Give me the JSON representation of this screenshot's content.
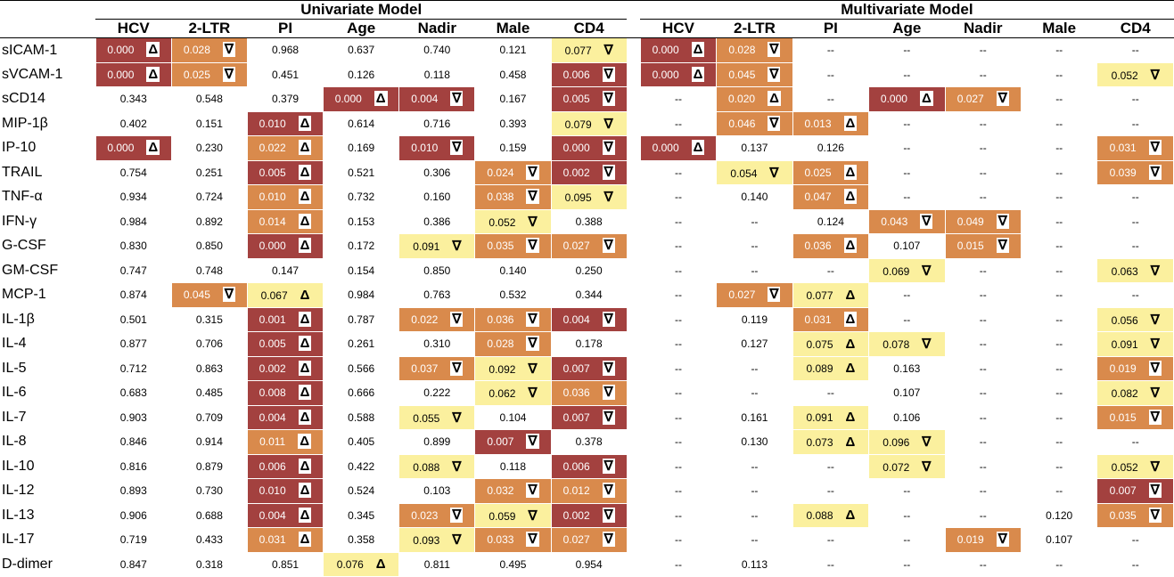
{
  "header": {
    "groups": [
      "Univariate Model",
      "Multivariate Model"
    ],
    "columns": [
      "HCV",
      "2-LTR",
      "PI",
      "Age",
      "Nadir",
      "Male",
      "CD4"
    ]
  },
  "rows": [
    {
      "label": "sICAM-1",
      "cells": [
        [
          "0.000",
          "Δ",
          "d"
        ],
        [
          "0.028",
          "∇",
          "m"
        ],
        [
          "0.968"
        ],
        [
          "0.637"
        ],
        [
          "0.740"
        ],
        [
          "0.121"
        ],
        [
          "0.077",
          "∇",
          "l"
        ],
        [
          "0.000",
          "Δ",
          "d"
        ],
        [
          "0.028",
          "∇",
          "m"
        ],
        [
          "--"
        ],
        [
          "--"
        ],
        [
          "--"
        ],
        [
          "--"
        ],
        [
          "--"
        ]
      ]
    },
    {
      "label": "sVCAM-1",
      "cells": [
        [
          "0.000",
          "Δ",
          "d"
        ],
        [
          "0.025",
          "∇",
          "m"
        ],
        [
          "0.451"
        ],
        [
          "0.126"
        ],
        [
          "0.118"
        ],
        [
          "0.458"
        ],
        [
          "0.006",
          "∇",
          "d"
        ],
        [
          "0.000",
          "Δ",
          "d"
        ],
        [
          "0.045",
          "∇",
          "m"
        ],
        [
          "--"
        ],
        [
          "--"
        ],
        [
          "--"
        ],
        [
          "--"
        ],
        [
          "0.052",
          "∇",
          "l"
        ]
      ]
    },
    {
      "label": "sCD14",
      "cells": [
        [
          "0.343"
        ],
        [
          "0.548"
        ],
        [
          "0.379"
        ],
        [
          "0.000",
          "Δ",
          "d"
        ],
        [
          "0.004",
          "∇",
          "d"
        ],
        [
          "0.167"
        ],
        [
          "0.005",
          "∇",
          "d"
        ],
        [
          "--"
        ],
        [
          "0.020",
          "Δ",
          "m"
        ],
        [
          "--"
        ],
        [
          "0.000",
          "Δ",
          "d"
        ],
        [
          "0.027",
          "∇",
          "m"
        ],
        [
          "--"
        ],
        [
          "--"
        ]
      ]
    },
    {
      "label": "MIP-1β",
      "cells": [
        [
          "0.402"
        ],
        [
          "0.151"
        ],
        [
          "0.010",
          "Δ",
          "d"
        ],
        [
          "0.614"
        ],
        [
          "0.716"
        ],
        [
          "0.393"
        ],
        [
          "0.079",
          "∇",
          "l"
        ],
        [
          "--"
        ],
        [
          "0.046",
          "∇",
          "m"
        ],
        [
          "0.013",
          "Δ",
          "m"
        ],
        [
          "--"
        ],
        [
          "--"
        ],
        [
          "--"
        ],
        [
          "--"
        ]
      ]
    },
    {
      "label": "IP-10",
      "cells": [
        [
          "0.000",
          "Δ",
          "d"
        ],
        [
          "0.230"
        ],
        [
          "0.022",
          "Δ",
          "m"
        ],
        [
          "0.169"
        ],
        [
          "0.010",
          "∇",
          "d"
        ],
        [
          "0.159"
        ],
        [
          "0.000",
          "∇",
          "d"
        ],
        [
          "0.000",
          "Δ",
          "d"
        ],
        [
          "0.137"
        ],
        [
          "0.126"
        ],
        [
          "--"
        ],
        [
          "--"
        ],
        [
          "--"
        ],
        [
          "0.031",
          "∇",
          "m"
        ]
      ]
    },
    {
      "label": "TRAIL",
      "cells": [
        [
          "0.754"
        ],
        [
          "0.251"
        ],
        [
          "0.005",
          "Δ",
          "d"
        ],
        [
          "0.521"
        ],
        [
          "0.306"
        ],
        [
          "0.024",
          "∇",
          "m"
        ],
        [
          "0.002",
          "∇",
          "d"
        ],
        [
          "--"
        ],
        [
          "0.054",
          "∇",
          "l"
        ],
        [
          "0.025",
          "Δ",
          "m"
        ],
        [
          "--"
        ],
        [
          "--"
        ],
        [
          "--"
        ],
        [
          "0.039",
          "∇",
          "m"
        ]
      ]
    },
    {
      "label": "TNF-α",
      "cells": [
        [
          "0.934"
        ],
        [
          "0.724"
        ],
        [
          "0.010",
          "Δ",
          "m"
        ],
        [
          "0.732"
        ],
        [
          "0.160"
        ],
        [
          "0.038",
          "∇",
          "m"
        ],
        [
          "0.095",
          "∇",
          "l"
        ],
        [
          "--"
        ],
        [
          "0.140"
        ],
        [
          "0.047",
          "Δ",
          "m"
        ],
        [
          "--"
        ],
        [
          "--"
        ],
        [
          "--"
        ],
        [
          "--"
        ]
      ]
    },
    {
      "label": "IFN-γ",
      "cells": [
        [
          "0.984"
        ],
        [
          "0.892"
        ],
        [
          "0.014",
          "Δ",
          "m"
        ],
        [
          "0.153"
        ],
        [
          "0.386"
        ],
        [
          "0.052",
          "∇",
          "l"
        ],
        [
          "0.388"
        ],
        [
          "--"
        ],
        [
          "--"
        ],
        [
          "0.124"
        ],
        [
          "0.043",
          "∇",
          "m"
        ],
        [
          "0.049",
          "∇",
          "m"
        ],
        [
          "--"
        ],
        [
          "--"
        ]
      ]
    },
    {
      "label": "G-CSF",
      "cells": [
        [
          "0.830"
        ],
        [
          "0.850"
        ],
        [
          "0.000",
          "Δ",
          "d"
        ],
        [
          "0.172"
        ],
        [
          "0.091",
          "∇",
          "l"
        ],
        [
          "0.035",
          "∇",
          "m"
        ],
        [
          "0.027",
          "∇",
          "m"
        ],
        [
          "--"
        ],
        [
          "--"
        ],
        [
          "0.036",
          "Δ",
          "m"
        ],
        [
          "0.107"
        ],
        [
          "0.015",
          "∇",
          "m"
        ],
        [
          "--"
        ],
        [
          "--"
        ]
      ]
    },
    {
      "label": "GM-CSF",
      "cells": [
        [
          "0.747"
        ],
        [
          "0.748"
        ],
        [
          "0.147"
        ],
        [
          "0.154"
        ],
        [
          "0.850"
        ],
        [
          "0.140"
        ],
        [
          "0.250"
        ],
        [
          "--"
        ],
        [
          "--"
        ],
        [
          "--"
        ],
        [
          "0.069",
          "∇",
          "l"
        ],
        [
          "--"
        ],
        [
          "--"
        ],
        [
          "0.063",
          "∇",
          "l"
        ]
      ]
    },
    {
      "label": "MCP-1",
      "cells": [
        [
          "0.874"
        ],
        [
          "0.045",
          "∇",
          "m"
        ],
        [
          "0.067",
          "Δ",
          "l"
        ],
        [
          "0.984"
        ],
        [
          "0.763"
        ],
        [
          "0.532"
        ],
        [
          "0.344"
        ],
        [
          "--"
        ],
        [
          "0.027",
          "∇",
          "m"
        ],
        [
          "0.077",
          "Δ",
          "l"
        ],
        [
          "--"
        ],
        [
          "--"
        ],
        [
          "--"
        ],
        [
          "--"
        ]
      ]
    },
    {
      "label": "IL-1β",
      "cells": [
        [
          "0.501"
        ],
        [
          "0.315"
        ],
        [
          "0.001",
          "Δ",
          "d"
        ],
        [
          "0.787"
        ],
        [
          "0.022",
          "∇",
          "m"
        ],
        [
          "0.036",
          "∇",
          "m"
        ],
        [
          "0.004",
          "∇",
          "d"
        ],
        [
          "--"
        ],
        [
          "0.119"
        ],
        [
          "0.031",
          "Δ",
          "m"
        ],
        [
          "--"
        ],
        [
          "--"
        ],
        [
          "--"
        ],
        [
          "0.056",
          "∇",
          "l"
        ]
      ]
    },
    {
      "label": "IL-4",
      "cells": [
        [
          "0.877"
        ],
        [
          "0.706"
        ],
        [
          "0.005",
          "Δ",
          "d"
        ],
        [
          "0.261"
        ],
        [
          "0.310"
        ],
        [
          "0.028",
          "∇",
          "m"
        ],
        [
          "0.178"
        ],
        [
          "--"
        ],
        [
          "0.127"
        ],
        [
          "0.075",
          "Δ",
          "l"
        ],
        [
          "0.078",
          "∇",
          "l"
        ],
        [
          "--"
        ],
        [
          "--"
        ],
        [
          "0.091",
          "∇",
          "l"
        ]
      ]
    },
    {
      "label": "IL-5",
      "cells": [
        [
          "0.712"
        ],
        [
          "0.863"
        ],
        [
          "0.002",
          "Δ",
          "d"
        ],
        [
          "0.566"
        ],
        [
          "0.037",
          "∇",
          "m"
        ],
        [
          "0.092",
          "∇",
          "l"
        ],
        [
          "0.007",
          "∇",
          "d"
        ],
        [
          "--"
        ],
        [
          "--"
        ],
        [
          "0.089",
          "Δ",
          "l"
        ],
        [
          "0.163"
        ],
        [
          "--"
        ],
        [
          "--"
        ],
        [
          "0.019",
          "∇",
          "m"
        ]
      ]
    },
    {
      "label": "IL-6",
      "cells": [
        [
          "0.683"
        ],
        [
          "0.485"
        ],
        [
          "0.008",
          "Δ",
          "d"
        ],
        [
          "0.666"
        ],
        [
          "0.222"
        ],
        [
          "0.062",
          "∇",
          "l"
        ],
        [
          "0.036",
          "∇",
          "m"
        ],
        [
          "--"
        ],
        [
          "--"
        ],
        [
          "--"
        ],
        [
          "0.107"
        ],
        [
          "--"
        ],
        [
          "--"
        ],
        [
          "0.082",
          "∇",
          "l"
        ]
      ]
    },
    {
      "label": "IL-7",
      "cells": [
        [
          "0.903"
        ],
        [
          "0.709"
        ],
        [
          "0.004",
          "Δ",
          "d"
        ],
        [
          "0.588"
        ],
        [
          "0.055",
          "∇",
          "l"
        ],
        [
          "0.104"
        ],
        [
          "0.007",
          "∇",
          "d"
        ],
        [
          "--"
        ],
        [
          "0.161"
        ],
        [
          "0.091",
          "Δ",
          "l"
        ],
        [
          "0.106"
        ],
        [
          "--"
        ],
        [
          "--"
        ],
        [
          "0.015",
          "∇",
          "m"
        ]
      ]
    },
    {
      "label": "IL-8",
      "cells": [
        [
          "0.846"
        ],
        [
          "0.914"
        ],
        [
          "0.011",
          "Δ",
          "m"
        ],
        [
          "0.405"
        ],
        [
          "0.899"
        ],
        [
          "0.007",
          "∇",
          "d"
        ],
        [
          "0.378"
        ],
        [
          "--"
        ],
        [
          "0.130"
        ],
        [
          "0.073",
          "Δ",
          "l"
        ],
        [
          "0.096",
          "∇",
          "l"
        ],
        [
          "--"
        ],
        [
          "--"
        ],
        [
          "--"
        ]
      ]
    },
    {
      "label": "IL-10",
      "cells": [
        [
          "0.816"
        ],
        [
          "0.879"
        ],
        [
          "0.006",
          "Δ",
          "d"
        ],
        [
          "0.422"
        ],
        [
          "0.088",
          "∇",
          "l"
        ],
        [
          "0.118"
        ],
        [
          "0.006",
          "∇",
          "d"
        ],
        [
          "--"
        ],
        [
          "--"
        ],
        [
          "--"
        ],
        [
          "0.072",
          "∇",
          "l"
        ],
        [
          "--"
        ],
        [
          "--"
        ],
        [
          "0.052",
          "∇",
          "l"
        ]
      ]
    },
    {
      "label": "IL-12",
      "cells": [
        [
          "0.893"
        ],
        [
          "0.730"
        ],
        [
          "0.010",
          "Δ",
          "d"
        ],
        [
          "0.524"
        ],
        [
          "0.103"
        ],
        [
          "0.032",
          "∇",
          "m"
        ],
        [
          "0.012",
          "∇",
          "m"
        ],
        [
          "--"
        ],
        [
          "--"
        ],
        [
          "--"
        ],
        [
          "--"
        ],
        [
          "--"
        ],
        [
          "--"
        ],
        [
          "0.007",
          "∇",
          "d"
        ]
      ]
    },
    {
      "label": "IL-13",
      "cells": [
        [
          "0.906"
        ],
        [
          "0.688"
        ],
        [
          "0.004",
          "Δ",
          "d"
        ],
        [
          "0.345"
        ],
        [
          "0.023",
          "∇",
          "m"
        ],
        [
          "0.059",
          "∇",
          "l"
        ],
        [
          "0.002",
          "∇",
          "d"
        ],
        [
          "--"
        ],
        [
          "--"
        ],
        [
          "0.088",
          "Δ",
          "l"
        ],
        [
          "--"
        ],
        [
          "--"
        ],
        [
          "0.120"
        ],
        [
          "0.035",
          "∇",
          "m"
        ]
      ]
    },
    {
      "label": "IL-17",
      "cells": [
        [
          "0.719"
        ],
        [
          "0.433"
        ],
        [
          "0.031",
          "Δ",
          "m"
        ],
        [
          "0.358"
        ],
        [
          "0.093",
          "∇",
          "l"
        ],
        [
          "0.033",
          "∇",
          "m"
        ],
        [
          "0.027",
          "∇",
          "m"
        ],
        [
          "--"
        ],
        [
          "--"
        ],
        [
          "--"
        ],
        [
          "--"
        ],
        [
          "0.019",
          "∇",
          "m"
        ],
        [
          "0.107"
        ],
        [
          "--"
        ]
      ]
    },
    {
      "label": "D-dimer",
      "cells": [
        [
          "0.847"
        ],
        [
          "0.318"
        ],
        [
          "0.851"
        ],
        [
          "0.076",
          "Δ",
          "l"
        ],
        [
          "0.811"
        ],
        [
          "0.495"
        ],
        [
          "0.954"
        ],
        [
          "--"
        ],
        [
          "0.113"
        ],
        [
          "--"
        ],
        [
          "--"
        ],
        [
          "--"
        ],
        [
          "--"
        ],
        [
          "--"
        ]
      ]
    }
  ]
}
